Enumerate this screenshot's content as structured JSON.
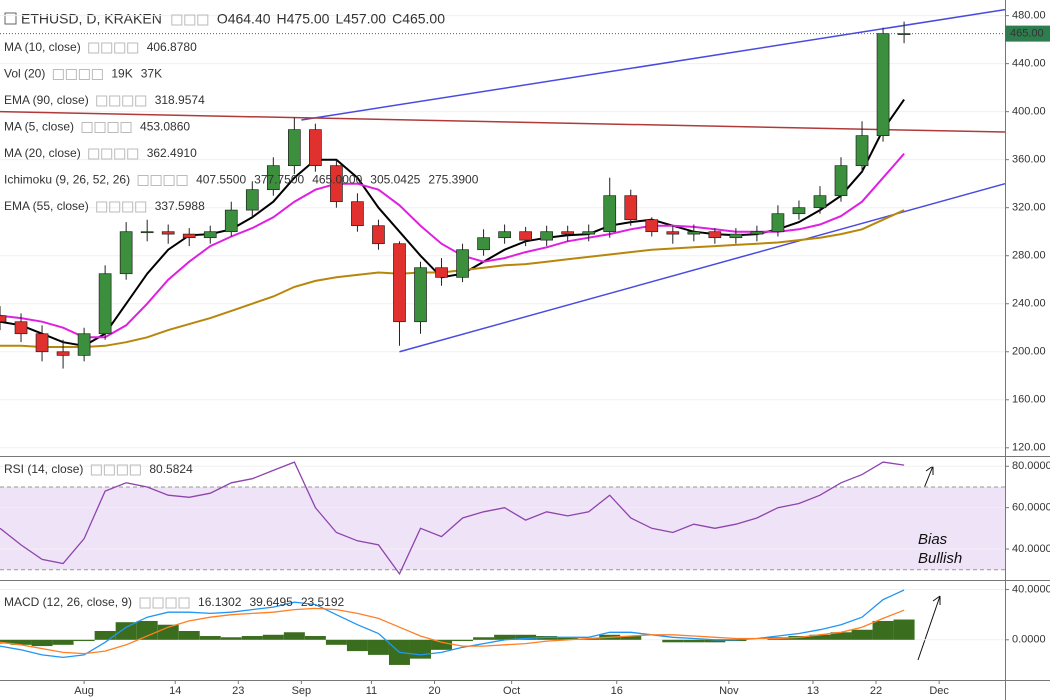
{
  "chart_data": [
    {
      "type": "candlestick",
      "title": "ETHUSD, D, KRAKEN",
      "ohlc_readouts": [
        "O464.40",
        "H475.00",
        "L457.00",
        "C465.00"
      ],
      "x": [
        0,
        3,
        6,
        9,
        12,
        15,
        18,
        21,
        24,
        27,
        30,
        33,
        36,
        39,
        42,
        45,
        48,
        51,
        54,
        57,
        60,
        63,
        66,
        69,
        72,
        75,
        78,
        81,
        84,
        87,
        90,
        93,
        96,
        99,
        102,
        105,
        108,
        111,
        114,
        117,
        120,
        123,
        126,
        129
      ],
      "open": [
        230,
        225,
        215,
        200,
        197,
        215,
        265,
        300,
        300,
        298,
        295,
        300,
        318,
        335,
        355,
        385,
        355,
        325,
        305,
        290,
        225,
        270,
        262,
        285,
        295,
        300,
        293,
        300,
        298,
        300,
        330,
        310,
        300,
        298,
        300,
        295,
        298,
        300,
        315,
        320,
        330,
        355,
        380,
        464.4
      ],
      "high": [
        238,
        232,
        222,
        210,
        220,
        272,
        308,
        310,
        306,
        303,
        305,
        325,
        342,
        362,
        395,
        390,
        360,
        332,
        310,
        292,
        275,
        278,
        290,
        302,
        306,
        304,
        305,
        305,
        306,
        345,
        335,
        312,
        305,
        306,
        303,
        303,
        305,
        322,
        326,
        338,
        362,
        392,
        470,
        475
      ],
      "low": [
        218,
        208,
        192,
        186,
        192,
        210,
        260,
        292,
        290,
        288,
        290,
        296,
        312,
        330,
        348,
        350,
        320,
        300,
        285,
        205,
        215,
        255,
        258,
        280,
        290,
        288,
        288,
        292,
        292,
        295,
        305,
        296,
        290,
        292,
        290,
        290,
        292,
        296,
        310,
        315,
        325,
        350,
        375,
        457
      ],
      "close": [
        225,
        215,
        200,
        197,
        215,
        265,
        300,
        300,
        298,
        295,
        300,
        318,
        335,
        355,
        385,
        355,
        325,
        305,
        290,
        225,
        270,
        262,
        285,
        295,
        300,
        293,
        300,
        298,
        300,
        330,
        310,
        300,
        298,
        300,
        295,
        298,
        300,
        315,
        320,
        330,
        355,
        380,
        465,
        465
      ],
      "up_color": "#3c8f3c",
      "down_color": "#e0312f",
      "xlim": [
        0,
        143.4
      ],
      "xticks": [
        {
          "value": 12,
          "label": "Aug"
        },
        {
          "value": 25,
          "label": "14"
        },
        {
          "value": 34,
          "label": "23"
        },
        {
          "value": 43,
          "label": "Sep"
        },
        {
          "value": 53,
          "label": "11"
        },
        {
          "value": 62,
          "label": "20"
        },
        {
          "value": 73,
          "label": "Oct"
        },
        {
          "value": 88,
          "label": "16"
        },
        {
          "value": 104,
          "label": "Nov"
        },
        {
          "value": 116,
          "label": "13"
        },
        {
          "value": 125,
          "label": "22"
        },
        {
          "value": 134,
          "label": "Dec"
        }
      ],
      "ylim": [
        114,
        493
      ],
      "yticks": [
        {
          "value": 120,
          "label": "120.00"
        },
        {
          "value": 160,
          "label": "160.00"
        },
        {
          "value": 200,
          "label": "200.00"
        },
        {
          "value": 240,
          "label": "240.00"
        },
        {
          "value": 280,
          "label": "280.00"
        },
        {
          "value": 320,
          "label": "320.00"
        },
        {
          "value": 360,
          "label": "360.00"
        },
        {
          "value": 400,
          "label": "400.00"
        },
        {
          "value": 440,
          "label": "440.00"
        },
        {
          "value": 480,
          "label": "480.00"
        }
      ],
      "grid": true,
      "last_price": {
        "value": 465,
        "label": "465.00"
      },
      "last_price_color": "#2e7d4f",
      "indicators": [
        {
          "name": "MA (10, close)",
          "readouts": [
            "406.8780"
          ],
          "colors": [
            "#000000"
          ],
          "color": "#000000",
          "values": [
            225,
            222,
            215,
            208,
            205,
            215,
            240,
            265,
            285,
            297,
            298,
            302,
            312,
            325,
            345,
            360,
            360,
            345,
            320,
            300,
            280,
            262,
            265,
            275,
            285,
            292,
            295,
            297,
            298,
            305,
            308,
            310,
            305,
            300,
            298,
            297,
            298,
            302,
            308,
            318,
            330,
            350,
            385,
            410
          ]
        },
        {
          "name": "Vol (20)",
          "readouts": [
            "19K",
            "37K"
          ],
          "colors": [
            "#3c8f3c",
            "#2a7bd5"
          ]
        },
        {
          "name": "EMA (90, close)",
          "readouts": [
            "318.9574"
          ],
          "colors": [
            "#b8860b"
          ],
          "color": "#b8860b",
          "values": [
            205,
            205,
            204,
            204,
            204,
            205,
            208,
            212,
            218,
            223,
            228,
            234,
            240,
            246,
            254,
            259,
            262,
            264,
            266,
            265,
            266,
            266,
            268,
            270,
            272,
            273,
            275,
            277,
            279,
            281,
            283,
            285,
            286,
            287,
            288,
            289,
            290,
            291,
            293,
            295,
            298,
            302,
            310,
            318
          ]
        },
        {
          "name": "MA (5, close)",
          "readouts": [
            "453.0860"
          ],
          "colors": [
            "#e0312f"
          ]
        },
        {
          "name": "MA (20, close)",
          "readouts": [
            "362.4910"
          ],
          "colors": [
            "#e020e0"
          ],
          "color": "#e020e0",
          "values": [
            230,
            228,
            225,
            220,
            212,
            212,
            222,
            240,
            260,
            275,
            288,
            296,
            303,
            312,
            325,
            335,
            340,
            340,
            335,
            322,
            305,
            290,
            280,
            275,
            278,
            283,
            287,
            292,
            295,
            298,
            302,
            305,
            305,
            304,
            302,
            300,
            300,
            300,
            302,
            306,
            313,
            325,
            345,
            365
          ]
        },
        {
          "name": "Ichimoku (9, 26, 52, 26)",
          "readouts": [
            "407.5500",
            "377.7500",
            "465.0000",
            "305.0425",
            "275.3900"
          ],
          "colors": [
            "#2a7bd5",
            "#8b1a1a",
            "#3c8f3c",
            "#3c8f3c",
            "#e0312f"
          ]
        },
        {
          "name": "EMA (55, close)",
          "readouts": [
            "337.5988"
          ],
          "colors": [
            "#8a2be2"
          ]
        }
      ],
      "trendlines": [
        {
          "color": "#4a4ae0",
          "x": [
            43,
            143.4
          ],
          "y": [
            393,
            485
          ]
        },
        {
          "color": "#4a4ae0",
          "x": [
            57,
            143.4
          ],
          "y": [
            200,
            340
          ]
        },
        {
          "color": "#b03a3a",
          "x": [
            0,
            143.4
          ],
          "y": [
            400,
            383
          ]
        }
      ]
    },
    {
      "type": "line",
      "title": "RSI (14, close)",
      "readouts": [
        "80.5824"
      ],
      "color": "#8e44ad",
      "values": [
        50,
        42,
        35,
        33,
        45,
        68,
        72,
        70,
        66,
        65,
        67,
        72,
        74,
        78,
        82,
        60,
        48,
        44,
        42,
        28,
        50,
        46,
        55,
        58,
        60,
        54,
        58,
        56,
        58,
        66,
        55,
        50,
        48,
        52,
        50,
        52,
        55,
        60,
        62,
        66,
        72,
        76,
        82,
        80.5824
      ],
      "band": [
        30,
        70
      ],
      "band_color": "#efe3f7",
      "ylim": [
        26,
        84
      ],
      "yticks": [
        {
          "value": 40,
          "label": "40.0000"
        },
        {
          "value": 60,
          "label": "60.0000"
        },
        {
          "value": 80,
          "label": "80.0000"
        }
      ],
      "annotation": [
        "Bias",
        "Bullish"
      ]
    },
    {
      "type": "macd",
      "title": "MACD (12, 26, close, 9)",
      "ylim": [
        -32,
        46
      ],
      "yticks": [
        {
          "value": 0,
          "label": "0.0000"
        },
        {
          "value": 40,
          "label": "40.0000"
        }
      ],
      "series": [
        {
          "kind": "bar",
          "readout": "16.1302",
          "color": "#3a6e1e",
          "values": [
            -3,
            -4,
            -5,
            -4,
            -1,
            7,
            14,
            15,
            12,
            7,
            3,
            2,
            3,
            4,
            6,
            3,
            -4,
            -9,
            -12,
            -20,
            -15,
            -8,
            -1,
            2,
            4,
            4,
            3,
            2,
            1,
            4,
            3,
            0,
            -2,
            -2,
            -2,
            -1,
            0,
            2,
            3,
            4,
            6,
            8,
            15,
            16.13
          ]
        },
        {
          "kind": "line",
          "readout": "39.6495",
          "color": "#2196f3",
          "values": [
            -5,
            -8,
            -12,
            -14,
            -12,
            -2,
            10,
            18,
            22,
            22,
            21,
            22,
            24,
            26,
            30,
            28,
            20,
            12,
            5,
            -10,
            -12,
            -10,
            -6,
            -3,
            0,
            1,
            2,
            2,
            2,
            6,
            6,
            4,
            2,
            1,
            0,
            0,
            1,
            3,
            5,
            8,
            12,
            18,
            32,
            39.65
          ]
        },
        {
          "kind": "line",
          "readout": "23.5192",
          "color": "#ff7f27",
          "values": [
            -2,
            -4,
            -7,
            -10,
            -11,
            -9,
            -4,
            3,
            10,
            15,
            18,
            20,
            21,
            22,
            24,
            25,
            24,
            21,
            17,
            10,
            3,
            -2,
            -5,
            -5,
            -4,
            -3,
            -1,
            0,
            1,
            2,
            3,
            4,
            4,
            3,
            2,
            1,
            1,
            1,
            2,
            4,
            6,
            10,
            17,
            23.52
          ]
        }
      ]
    }
  ]
}
